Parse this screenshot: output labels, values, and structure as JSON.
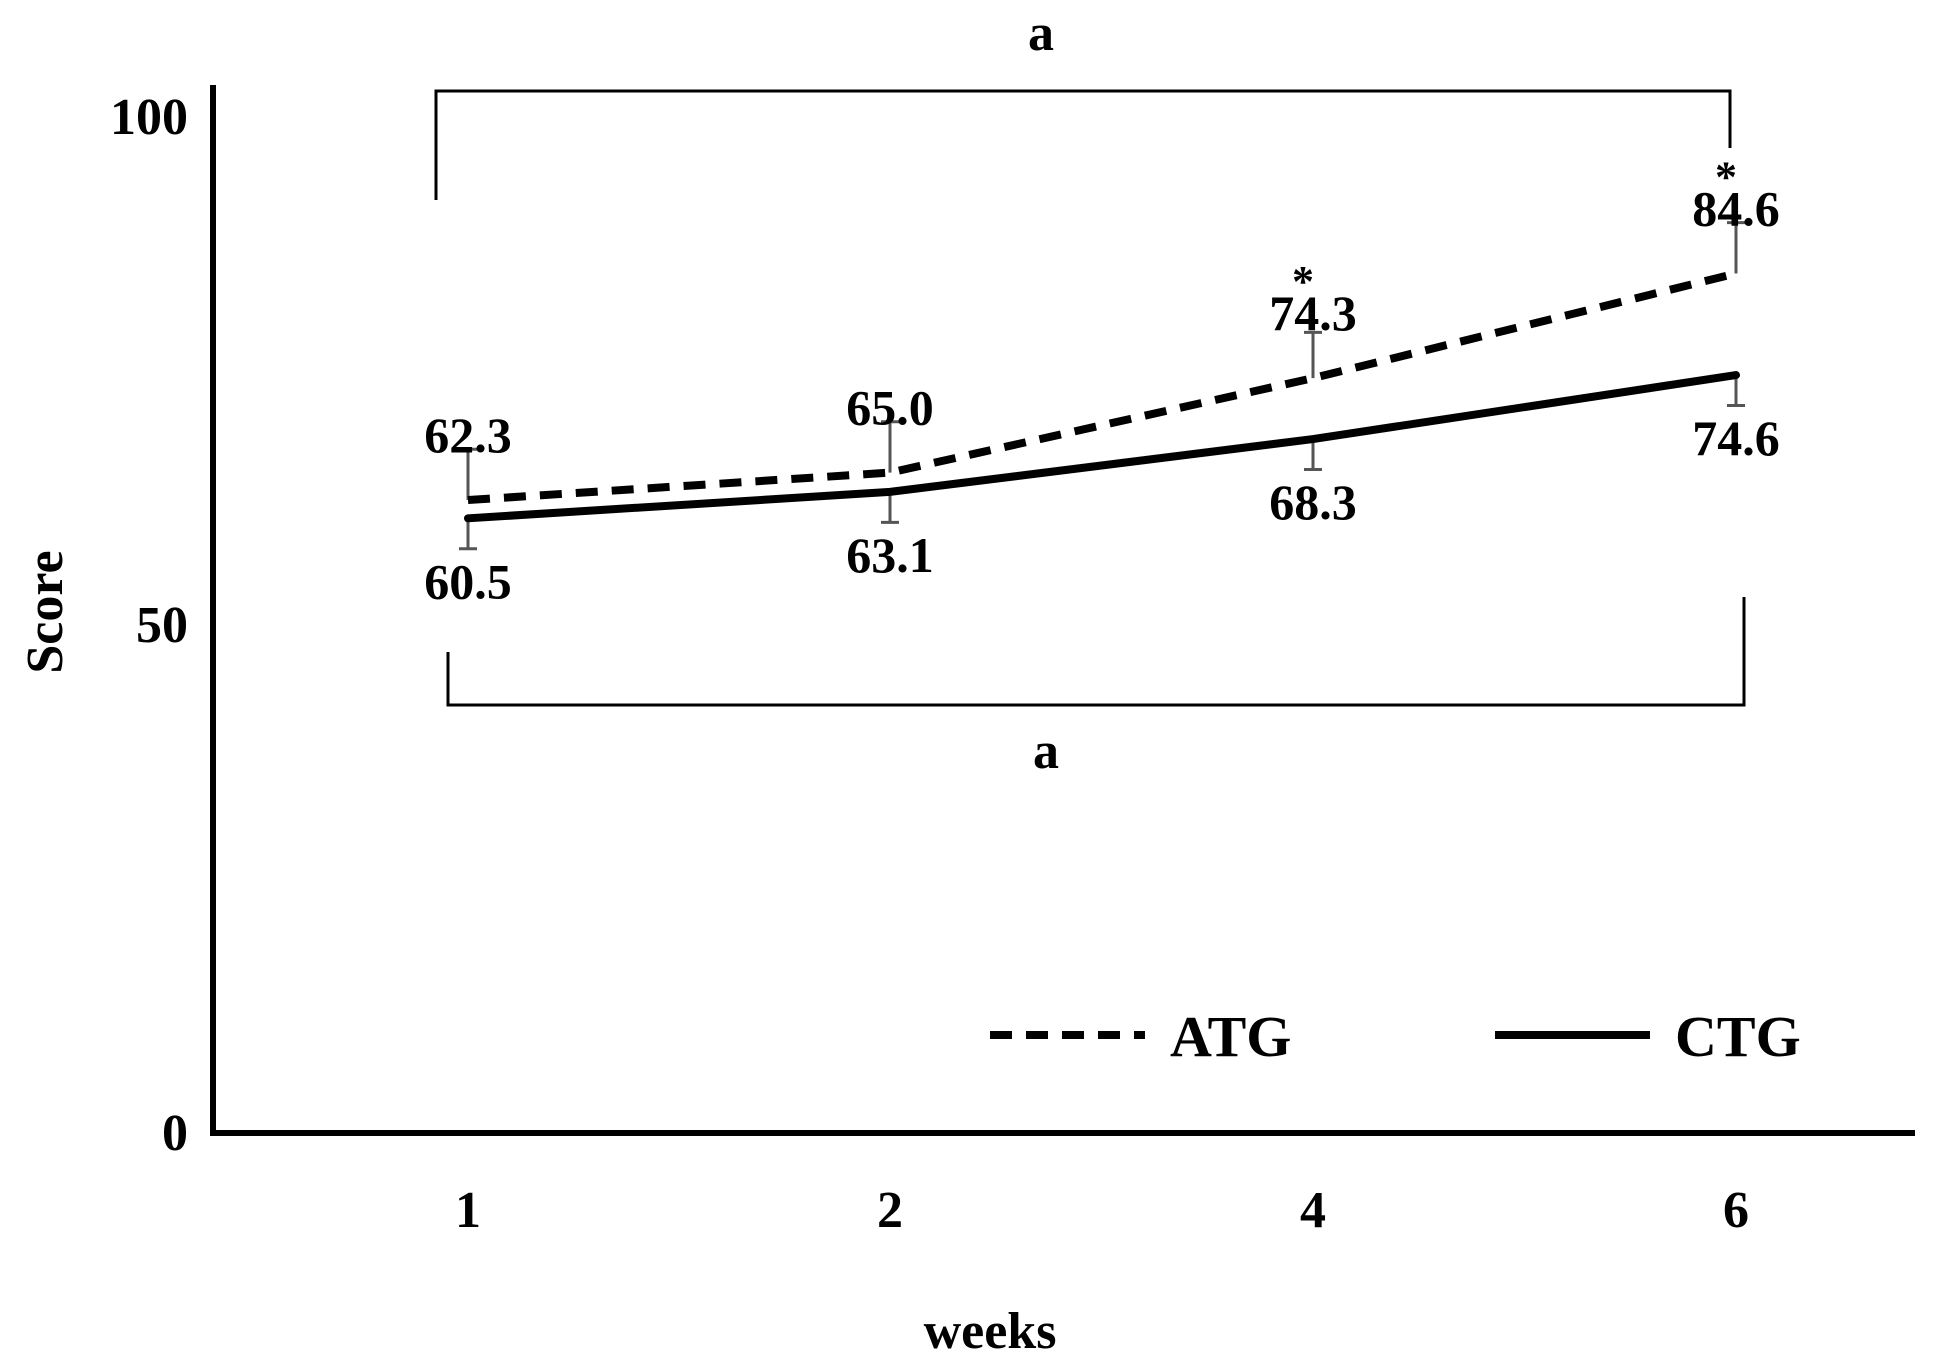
{
  "chart_data": {
    "type": "line",
    "title": "",
    "xlabel": "weeks",
    "ylabel": "Score",
    "categories": [
      "1",
      "2",
      "4",
      "6"
    ],
    "y_ticks": [
      "0",
      "50",
      "100"
    ],
    "ylim": [
      0,
      100
    ],
    "grid": false,
    "legend_position": "bottom-right",
    "series": [
      {
        "name": "ATG",
        "line_style": "dashed",
        "values": [
          62.3,
          65.0,
          74.3,
          84.6
        ],
        "value_labels": [
          "62.3",
          "65.0",
          "74.3",
          "84.6"
        ],
        "error": [
          5.0,
          5.0,
          4.5,
          5.0
        ],
        "significance": [
          "",
          "",
          "*",
          "*"
        ]
      },
      {
        "name": "CTG",
        "line_style": "solid",
        "values": [
          60.5,
          63.1,
          68.3,
          74.6
        ],
        "value_labels": [
          "60.5",
          "63.1",
          "68.3",
          "74.6"
        ],
        "error": [
          3.0,
          3.0,
          3.0,
          3.0
        ],
        "significance": [
          "",
          "",
          "",
          ""
        ]
      }
    ],
    "annotations": [
      {
        "label": "a",
        "series": "ATG",
        "from": "1",
        "to": "6",
        "position": "top"
      },
      {
        "label": "a",
        "series": "CTG",
        "from": "1",
        "to": "6",
        "position": "bottom"
      }
    ]
  }
}
